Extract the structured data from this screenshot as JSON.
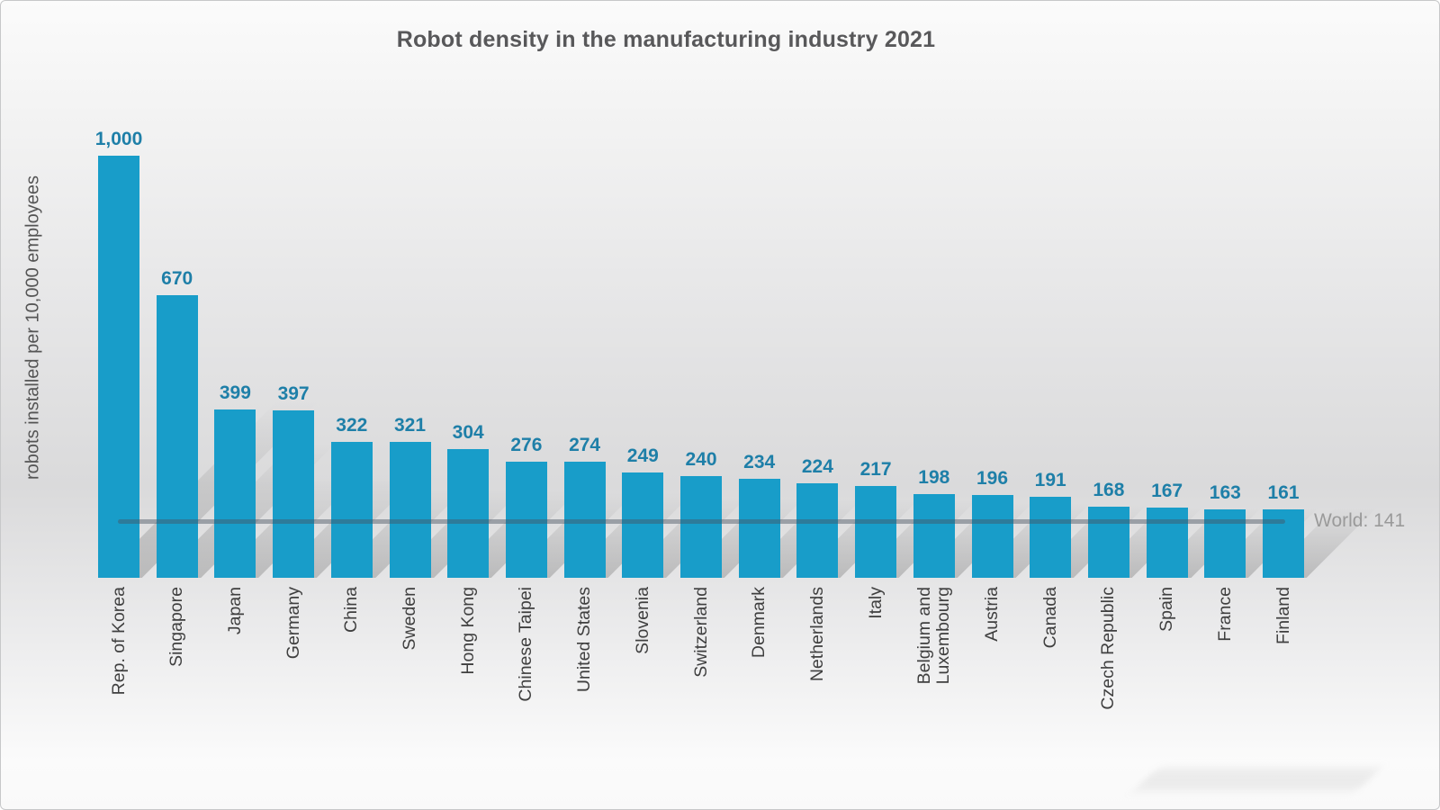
{
  "chart_data": {
    "type": "bar",
    "title": "Robot density in the manufacturing industry 2021",
    "ylabel": "robots installed per 10,000 employees",
    "xlabel": "",
    "categories": [
      "Rep. of Korea",
      "Singapore",
      "Japan",
      "Germany",
      "China",
      "Sweden",
      "Hong Kong",
      "Chinese Taipei",
      "United States",
      "Slovenia",
      "Switzerland",
      "Denmark",
      "Netherlands",
      "Italy",
      "Belgium and\nLuxembourg",
      "Austria",
      "Canada",
      "Czech Republic",
      "Spain",
      "France",
      "Finland"
    ],
    "values": [
      1000,
      670,
      399,
      397,
      322,
      321,
      304,
      276,
      274,
      249,
      240,
      234,
      224,
      217,
      198,
      196,
      191,
      168,
      167,
      163,
      161
    ],
    "value_labels": [
      "1,000",
      "670",
      "399",
      "397",
      "322",
      "321",
      "304",
      "276",
      "274",
      "249",
      "240",
      "234",
      "224",
      "217",
      "198",
      "196",
      "191",
      "168",
      "167",
      "163",
      "161"
    ],
    "reference_line": {
      "label": "World: 141",
      "value": 141
    },
    "ylim": [
      0,
      1000
    ],
    "grid": false,
    "legend": "none",
    "colors": {
      "bar": "#189dc9",
      "value_label": "#1e7fa8",
      "title": "#58585a",
      "y_axis_title": "#555555",
      "x_axis_label": "#3f3f3f",
      "reference_line": "rgba(72,82,98,0.45)",
      "reference_label": "#9a9a9a"
    }
  }
}
